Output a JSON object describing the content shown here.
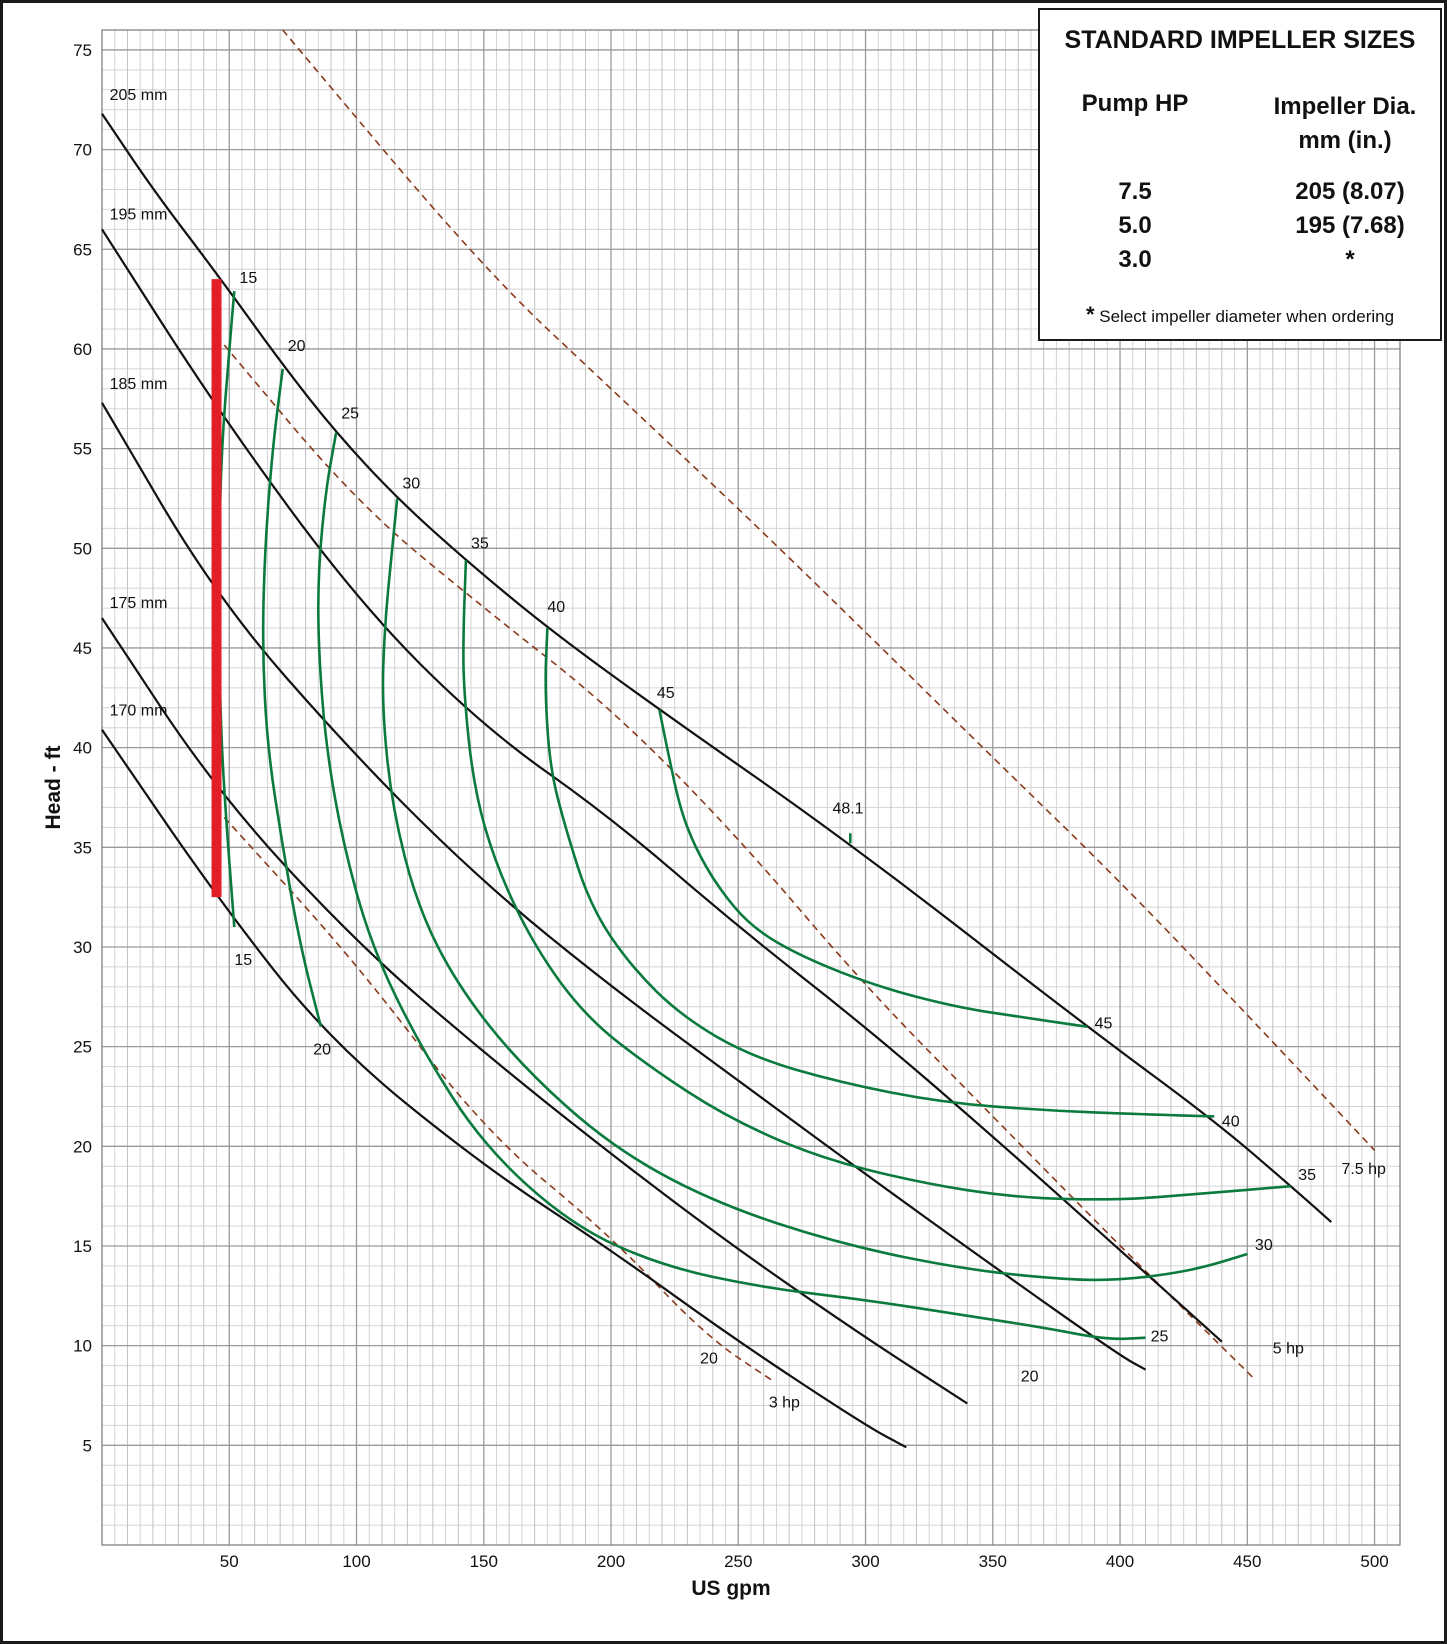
{
  "chart_data": {
    "type": "line",
    "title": "",
    "xlabel": "US gpm",
    "ylabel": "Head - ft",
    "xlim": [
      0,
      510
    ],
    "ylim": [
      0,
      76
    ],
    "x_ticks": [
      50,
      100,
      150,
      200,
      250,
      300,
      350,
      400,
      450,
      500
    ],
    "y_ticks": [
      5,
      10,
      15,
      20,
      25,
      30,
      35,
      40,
      45,
      50,
      55,
      60,
      65,
      70,
      75
    ],
    "grid": true,
    "impeller_curves": [
      {
        "name": "205 mm",
        "points": [
          [
            0,
            71.8
          ],
          [
            20,
            68
          ],
          [
            45,
            63.8
          ],
          [
            71,
            59.2
          ],
          [
            92,
            55.8
          ],
          [
            116,
            52.5
          ],
          [
            143,
            49.4
          ],
          [
            175,
            46.0
          ],
          [
            219,
            41.9
          ],
          [
            294,
            35.2
          ],
          [
            387,
            26.0
          ],
          [
            437,
            21.3
          ],
          [
            468,
            17.9
          ],
          [
            483,
            16.2
          ]
        ]
      },
      {
        "name": "195 mm",
        "points": [
          [
            0,
            66.0
          ],
          [
            45,
            57.0
          ],
          [
            100,
            47.4
          ],
          [
            150,
            41.0
          ],
          [
            200,
            36.5
          ],
          [
            250,
            31.0
          ],
          [
            300,
            26.0
          ],
          [
            350,
            20.5
          ],
          [
            400,
            14.8
          ],
          [
            440,
            10.2
          ]
        ]
      },
      {
        "name": "185 mm",
        "points": [
          [
            0,
            57.3
          ],
          [
            45,
            47.5
          ],
          [
            100,
            39.5
          ],
          [
            150,
            33.2
          ],
          [
            200,
            28.0
          ],
          [
            250,
            23.3
          ],
          [
            300,
            18.6
          ],
          [
            350,
            14.0
          ],
          [
            400,
            9.5
          ],
          [
            410,
            8.8
          ]
        ]
      },
      {
        "name": "175 mm",
        "points": [
          [
            0,
            46.5
          ],
          [
            45,
            37.8
          ],
          [
            100,
            30.2
          ],
          [
            150,
            24.7
          ],
          [
            200,
            19.6
          ],
          [
            250,
            14.8
          ],
          [
            300,
            10.4
          ],
          [
            340,
            7.1
          ]
        ]
      },
      {
        "name": "170 mm",
        "points": [
          [
            0,
            40.9
          ],
          [
            45,
            32.5
          ],
          [
            90,
            25.2
          ],
          [
            150,
            19.0
          ],
          [
            200,
            14.8
          ],
          [
            250,
            10.2
          ],
          [
            300,
            6.0
          ],
          [
            316,
            4.9
          ]
        ]
      }
    ],
    "efficiency_curves": [
      {
        "name": "15",
        "points": [
          [
            52,
            62.9
          ],
          [
            50,
            60
          ],
          [
            47,
            55
          ],
          [
            46,
            50
          ],
          [
            46,
            45
          ],
          [
            47,
            40
          ],
          [
            49,
            36
          ],
          [
            52,
            31
          ]
        ]
      },
      {
        "name": "20",
        "points": [
          [
            71,
            59.0
          ],
          [
            67,
            55
          ],
          [
            64,
            50
          ],
          [
            63,
            45
          ],
          [
            65,
            40
          ],
          [
            71,
            35
          ],
          [
            78,
            30
          ],
          [
            86,
            26
          ]
        ]
      },
      {
        "name": "25",
        "points": [
          [
            92,
            55.8
          ],
          [
            88,
            53
          ],
          [
            85,
            49
          ],
          [
            85,
            45
          ],
          [
            88,
            40
          ],
          [
            95,
            35
          ],
          [
            106,
            30
          ],
          [
            125,
            25
          ],
          [
            150,
            20
          ],
          [
            185,
            16
          ],
          [
            220,
            14
          ],
          [
            260,
            12.9
          ],
          [
            300,
            12.3
          ],
          [
            340,
            11.5
          ],
          [
            370,
            10.9
          ],
          [
            395,
            10.3
          ],
          [
            410,
            10.4
          ]
        ]
      },
      {
        "name": "30",
        "points": [
          [
            116,
            52.5
          ],
          [
            114,
            50
          ],
          [
            111,
            46
          ],
          [
            110,
            42
          ],
          [
            114,
            37
          ],
          [
            124,
            32
          ],
          [
            140,
            28
          ],
          [
            165,
            24
          ],
          [
            200,
            20
          ],
          [
            240,
            17.2
          ],
          [
            290,
            15.1
          ],
          [
            340,
            13.8
          ],
          [
            380,
            13.3
          ],
          [
            400,
            13.3
          ],
          [
            420,
            13.6
          ],
          [
            435,
            14.0
          ],
          [
            450,
            14.6
          ]
        ]
      },
      {
        "name": "35",
        "points": [
          [
            143,
            49.4
          ],
          [
            142,
            46
          ],
          [
            142,
            43
          ],
          [
            146,
            38
          ],
          [
            155,
            34
          ],
          [
            170,
            30
          ],
          [
            190,
            26.5
          ],
          [
            215,
            24
          ],
          [
            245,
            21.5
          ],
          [
            280,
            19.5
          ],
          [
            320,
            18.2
          ],
          [
            360,
            17.4
          ],
          [
            400,
            17.3
          ],
          [
            430,
            17.6
          ],
          [
            467,
            18.0
          ]
        ]
      },
      {
        "name": "40",
        "points": [
          [
            175,
            46.0
          ],
          [
            174,
            43
          ],
          [
            176,
            39
          ],
          [
            182,
            36
          ],
          [
            192,
            32
          ],
          [
            208,
            29
          ],
          [
            228,
            26.5
          ],
          [
            255,
            24.5
          ],
          [
            290,
            23.2
          ],
          [
            330,
            22.2
          ],
          [
            370,
            21.8
          ],
          [
            410,
            21.6
          ],
          [
            437,
            21.5
          ]
        ]
      },
      {
        "name": "45",
        "points": [
          [
            219,
            41.9
          ],
          [
            222,
            40
          ],
          [
            227,
            37
          ],
          [
            233,
            35
          ],
          [
            242,
            33
          ],
          [
            255,
            31
          ],
          [
            275,
            29.5
          ],
          [
            305,
            28
          ],
          [
            335,
            27
          ],
          [
            360,
            26.5
          ],
          [
            387,
            26
          ]
        ]
      },
      {
        "name": "48.1",
        "points": [
          [
            294,
            35.2
          ],
          [
            294,
            35.7
          ]
        ]
      }
    ],
    "efficiency_labels": [
      {
        "text": "15",
        "x": 54,
        "y": 63.3
      },
      {
        "text": "20",
        "x": 73,
        "y": 59.9
      },
      {
        "text": "25",
        "x": 94,
        "y": 56.5
      },
      {
        "text": "30",
        "x": 118,
        "y": 53.0
      },
      {
        "text": "35",
        "x": 145,
        "y": 50.0
      },
      {
        "text": "40",
        "x": 175,
        "y": 46.8
      },
      {
        "text": "45",
        "x": 218,
        "y": 42.5
      },
      {
        "text": "48.1",
        "x": 287,
        "y": 36.7
      },
      {
        "text": "15",
        "x": 52,
        "y": 29.1
      },
      {
        "text": "20",
        "x": 83,
        "y": 24.6
      },
      {
        "text": "45",
        "x": 390,
        "y": 25.9
      },
      {
        "text": "40",
        "x": 440,
        "y": 21.0
      },
      {
        "text": "35",
        "x": 470,
        "y": 18.3
      },
      {
        "text": "30",
        "x": 453,
        "y": 14.8
      },
      {
        "text": "25",
        "x": 412,
        "y": 10.2
      },
      {
        "text": "20",
        "x": 361,
        "y": 8.2
      },
      {
        "text": "20",
        "x": 235,
        "y": 9.1
      }
    ],
    "power_curves": [
      {
        "name": "7.5 hp",
        "points": [
          [
            71,
            76.0
          ],
          [
            150,
            64
          ],
          [
            200,
            58
          ],
          [
            250,
            52
          ],
          [
            300,
            45.8
          ],
          [
            350,
            39.5
          ],
          [
            400,
            33.3
          ],
          [
            450,
            26.6
          ],
          [
            500,
            19.8
          ]
        ]
      },
      {
        "name": "5 hp",
        "points": [
          [
            48,
            60.2
          ],
          [
            100,
            52.3
          ],
          [
            150,
            47.0
          ],
          [
            200,
            42.0
          ],
          [
            250,
            35.5
          ],
          [
            300,
            28.0
          ],
          [
            350,
            21.5
          ],
          [
            400,
            15.0
          ],
          [
            453,
            8.3
          ]
        ]
      },
      {
        "name": "3 hp",
        "points": [
          [
            48,
            36.5
          ],
          [
            100,
            29.2
          ],
          [
            150,
            20.8
          ],
          [
            200,
            15.5
          ],
          [
            237,
            10.5
          ],
          [
            264,
            8.2
          ]
        ]
      }
    ],
    "power_labels": [
      {
        "text": "7.5 hp",
        "x": 487,
        "y": 18.6
      },
      {
        "text": "5 hp",
        "x": 460,
        "y": 9.6
      },
      {
        "text": "3 hp",
        "x": 262,
        "y": 6.9
      }
    ],
    "impeller_labels": [
      {
        "text": "205 mm",
        "x": 3,
        "y": 72.5
      },
      {
        "text": "195 mm",
        "x": 3,
        "y": 66.5
      },
      {
        "text": "185 mm",
        "x": 3,
        "y": 58.0
      },
      {
        "text": "175 mm",
        "x": 3,
        "y": 47.0
      },
      {
        "text": "170 mm",
        "x": 3,
        "y": 41.6
      }
    ],
    "operating_range": {
      "x": 45,
      "y_min": 32.5,
      "y_max": 63.5,
      "color": "#e21f26"
    },
    "colors": {
      "impeller": "#111111",
      "efficiency": "#0b7a3e",
      "power": "#8b3a1c",
      "grid_major": "#9a9a9a",
      "grid_minor": "#d4d4d4"
    }
  },
  "legend": {
    "title": "STANDARD IMPELLER SIZES",
    "col_hp": "Pump HP",
    "col_dia_line1": "Impeller Dia.",
    "col_dia_line2": "mm (in.)",
    "rows": [
      {
        "hp": "7.5",
        "dia": "205 (8.07)"
      },
      {
        "hp": "5.0",
        "dia": "195 (7.68)"
      },
      {
        "hp": "3.0",
        "dia": "*"
      }
    ],
    "note_star": "*",
    "note_text": "Select impeller diameter when ordering"
  }
}
